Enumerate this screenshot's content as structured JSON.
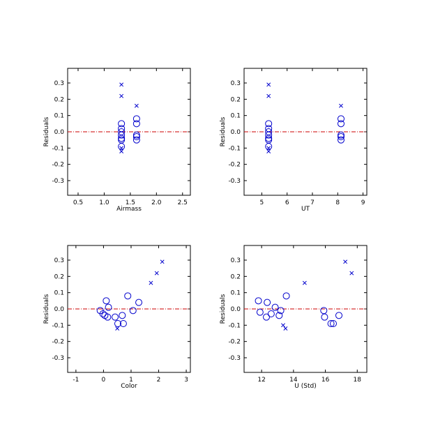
{
  "colors": {
    "marker": "#0000cc",
    "zero_line": "#cc0000",
    "axis": "#000000",
    "background": "#ffffff"
  },
  "chart_data": [
    {
      "type": "scatter",
      "xlabel": "Airmass",
      "ylabel": "Residuals",
      "xlim": [
        0.3,
        2.65
      ],
      "ylim": [
        -0.39,
        0.39
      ],
      "xticks": [
        "0.5",
        "1.0",
        "1.5",
        "2.0",
        "2.5"
      ],
      "yticks": [
        "-0.3",
        "-0.2",
        "-0.1",
        "0.0",
        "0.1",
        "0.2",
        "0.3"
      ],
      "zero_line": 0.0,
      "series": [
        {
          "marker": "circle",
          "points": [
            [
              1.33,
              0.05
            ],
            [
              1.33,
              0.02
            ],
            [
              1.33,
              0.0
            ],
            [
              1.33,
              -0.02
            ],
            [
              1.33,
              -0.04
            ],
            [
              1.33,
              -0.05
            ],
            [
              1.33,
              -0.09
            ],
            [
              1.62,
              0.08
            ],
            [
              1.62,
              0.05
            ],
            [
              1.62,
              -0.02
            ],
            [
              1.62,
              -0.03
            ],
            [
              1.62,
              -0.05
            ]
          ]
        },
        {
          "marker": "cross",
          "points": [
            [
              1.33,
              0.29
            ],
            [
              1.33,
              0.22
            ],
            [
              1.33,
              -0.1
            ],
            [
              1.33,
              -0.12
            ],
            [
              1.62,
              0.16
            ]
          ]
        }
      ]
    },
    {
      "type": "scatter",
      "xlabel": "UT",
      "ylabel": "Residuals",
      "xlim": [
        4.3,
        9.15
      ],
      "ylim": [
        -0.39,
        0.39
      ],
      "xticks": [
        "5",
        "6",
        "7",
        "8",
        "9"
      ],
      "yticks": [
        "-0.3",
        "-0.2",
        "-0.1",
        "0.0",
        "0.1",
        "0.2",
        "0.3"
      ],
      "zero_line": 0.0,
      "series": [
        {
          "marker": "circle",
          "points": [
            [
              5.27,
              0.05
            ],
            [
              5.27,
              0.02
            ],
            [
              5.27,
              0.0
            ],
            [
              5.27,
              -0.02
            ],
            [
              5.27,
              -0.04
            ],
            [
              5.27,
              -0.05
            ],
            [
              5.27,
              -0.09
            ],
            [
              8.13,
              0.08
            ],
            [
              8.13,
              0.05
            ],
            [
              8.13,
              -0.02
            ],
            [
              8.13,
              -0.03
            ],
            [
              8.13,
              -0.05
            ]
          ]
        },
        {
          "marker": "cross",
          "points": [
            [
              5.27,
              0.29
            ],
            [
              5.27,
              0.22
            ],
            [
              5.27,
              -0.1
            ],
            [
              5.27,
              -0.12
            ],
            [
              8.13,
              0.16
            ]
          ]
        }
      ]
    },
    {
      "type": "scatter",
      "xlabel": "Color",
      "ylabel": "Residuals",
      "xlim": [
        -1.3,
        3.15
      ],
      "ylim": [
        -0.39,
        0.39
      ],
      "xticks": [
        "-1",
        "0",
        "1",
        "2",
        "3"
      ],
      "yticks": [
        "-0.3",
        "-0.2",
        "-0.1",
        "0.0",
        "0.1",
        "0.2",
        "0.3"
      ],
      "zero_line": 0.0,
      "series": [
        {
          "marker": "circle",
          "points": [
            [
              -0.12,
              -0.01
            ],
            [
              -0.02,
              -0.03
            ],
            [
              0.05,
              -0.04
            ],
            [
              0.1,
              0.05
            ],
            [
              0.18,
              0.01
            ],
            [
              0.15,
              -0.05
            ],
            [
              0.42,
              -0.05
            ],
            [
              0.52,
              -0.09
            ],
            [
              0.68,
              -0.04
            ],
            [
              0.72,
              -0.09
            ],
            [
              0.88,
              0.08
            ],
            [
              1.07,
              -0.01
            ],
            [
              1.28,
              0.04
            ]
          ]
        },
        {
          "marker": "cross",
          "points": [
            [
              0.5,
              -0.12
            ],
            [
              1.72,
              0.16
            ],
            [
              1.93,
              0.22
            ],
            [
              2.13,
              0.29
            ]
          ]
        }
      ]
    },
    {
      "type": "scatter",
      "xlabel": "U (Std)",
      "ylabel": "Residuals",
      "xlim": [
        10.9,
        18.6
      ],
      "ylim": [
        -0.39,
        0.39
      ],
      "xticks": [
        "12",
        "14",
        "16",
        "18"
      ],
      "yticks": [
        "-0.3",
        "-0.2",
        "-0.1",
        "0.0",
        "0.1",
        "0.2",
        "0.3"
      ],
      "zero_line": 0.0,
      "series": [
        {
          "marker": "circle",
          "points": [
            [
              11.8,
              0.05
            ],
            [
              11.9,
              -0.02
            ],
            [
              12.3,
              -0.05
            ],
            [
              12.35,
              0.04
            ],
            [
              12.6,
              -0.03
            ],
            [
              12.85,
              0.01
            ],
            [
              13.1,
              -0.04
            ],
            [
              13.2,
              -0.01
            ],
            [
              13.55,
              0.08
            ],
            [
              15.9,
              -0.01
            ],
            [
              15.95,
              -0.05
            ],
            [
              16.35,
              -0.09
            ],
            [
              16.5,
              -0.09
            ],
            [
              16.85,
              -0.04
            ]
          ]
        },
        {
          "marker": "cross",
          "points": [
            [
              13.35,
              -0.1
            ],
            [
              13.5,
              -0.12
            ],
            [
              14.7,
              0.16
            ],
            [
              17.25,
              0.29
            ],
            [
              17.65,
              0.22
            ]
          ]
        }
      ]
    }
  ]
}
